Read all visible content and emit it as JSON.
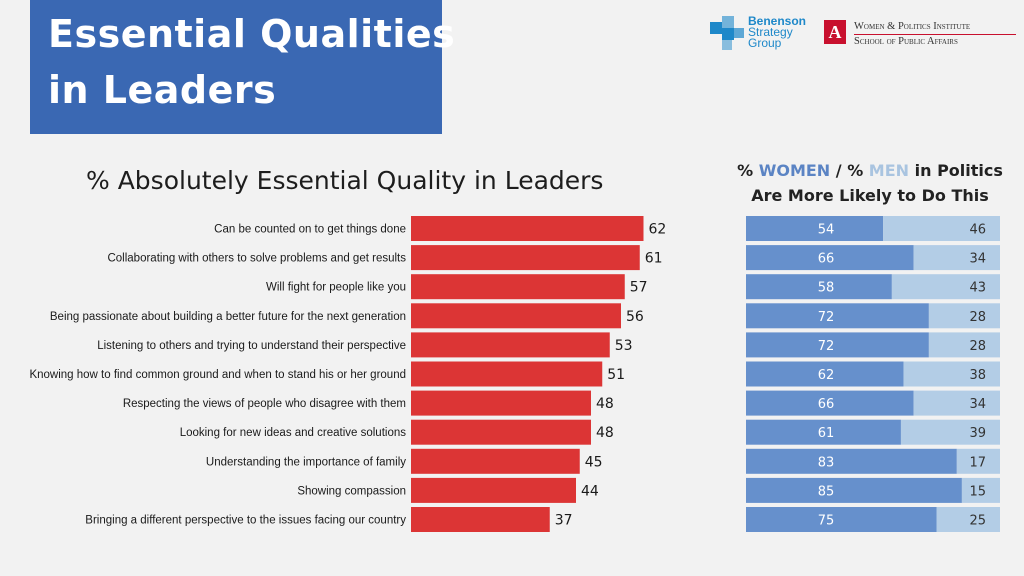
{
  "header": {
    "title_line1": "Essential Qualities",
    "title_line2": "in Leaders"
  },
  "logos": {
    "benenson": [
      "Benenson",
      "Strategy",
      "Group"
    ],
    "institute_line1": "Women & Politics Institute",
    "institute_line2": "School of Public Affairs",
    "mark_letter": "A"
  },
  "colors": {
    "title_bg": "#3a68b3",
    "bar": "#dc3535",
    "women": "#6690cc",
    "men": "#b3cde6"
  },
  "chart_data": [
    {
      "type": "bar",
      "orientation": "horizontal",
      "title": "% Absolutely Essential Quality in Leaders",
      "categories": [
        "Can be counted on to get things done",
        "Collaborating with others to solve problems and get results",
        "Will fight for people like you",
        "Being passionate about building a better future for the next generation",
        "Listening to others and trying to understand their perspective",
        "Knowing how to find common ground and when to stand his or her ground",
        "Respecting the views of people who disagree with them",
        "Looking for new ideas and creative solutions",
        "Understanding the importance of family",
        "Showing compassion",
        "Bringing a different perspective to the issues facing our country"
      ],
      "values": [
        62,
        61,
        57,
        56,
        53,
        51,
        48,
        48,
        45,
        44,
        37
      ],
      "xlim": [
        0,
        100
      ],
      "grid": false
    },
    {
      "type": "bar",
      "orientation": "horizontal",
      "stacked": true,
      "title_parts": [
        "% ",
        "WOMEN",
        " / % ",
        "MEN",
        " in Politics",
        "Are More Likely to Do This"
      ],
      "series": [
        {
          "name": "WOMEN",
          "values": [
            54,
            66,
            58,
            72,
            72,
            62,
            66,
            61,
            83,
            85,
            75
          ]
        },
        {
          "name": "MEN",
          "values": [
            46,
            34,
            43,
            28,
            28,
            38,
            34,
            39,
            17,
            15,
            25
          ]
        }
      ],
      "grid": false
    }
  ]
}
